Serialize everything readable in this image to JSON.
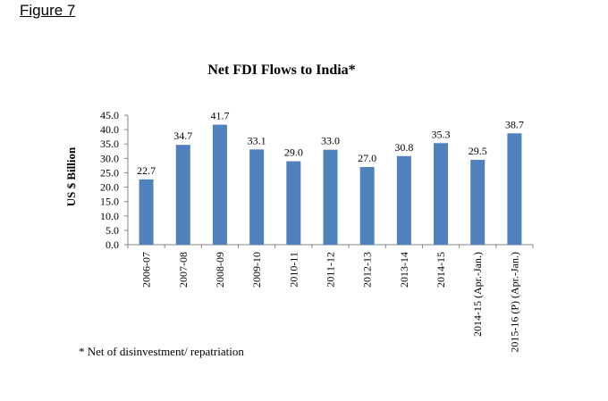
{
  "figure_label": "Figure 7",
  "footnote": "* Net of  disinvestment/ repatriation",
  "colors": {
    "bar": "#4f81bd",
    "axis": "#868686",
    "text": "#000000"
  },
  "chart_data": {
    "type": "bar",
    "title": "Net FDI Flows to India*",
    "xlabel": "",
    "ylabel": "US $ Billion",
    "ylim": [
      0,
      45
    ],
    "yticks": [
      "0.0",
      "5.0",
      "10.0",
      "15.0",
      "20.0",
      "25.0",
      "30.0",
      "35.0",
      "40.0",
      "45.0"
    ],
    "grid": false,
    "categories": [
      "2006-07",
      "2007-08",
      "2008-09",
      "2009-10",
      "2010-11",
      "2011-12",
      "2012-13",
      "2013-14",
      "2014-15",
      "2014-15 (Apr.-Jan.)",
      "2015-16 (P) (Apr.-Jan.)"
    ],
    "values": [
      22.7,
      34.7,
      41.7,
      33.1,
      29.0,
      33.0,
      27.0,
      30.8,
      35.3,
      29.5,
      38.7
    ],
    "value_labels": [
      "22.7",
      "34.7",
      "41.7",
      "33.1",
      "29.0",
      "33.0",
      "27.0",
      "30.8",
      "35.3",
      "29.5",
      "38.7"
    ]
  }
}
